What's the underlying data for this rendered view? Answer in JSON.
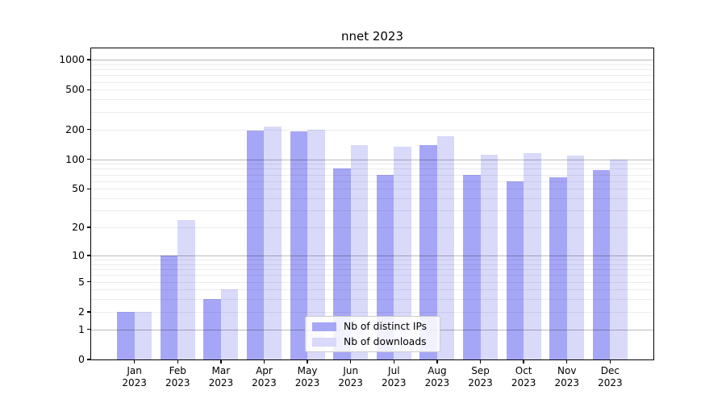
{
  "chart_data": {
    "type": "bar",
    "title": "nnet 2023",
    "categories": [
      "Jan 2023",
      "Feb 2023",
      "Mar 2023",
      "Apr 2023",
      "May 2023",
      "Jun 2023",
      "Jul 2023",
      "Aug 2023",
      "Sep 2023",
      "Oct 2023",
      "Nov 2023",
      "Dec 2023"
    ],
    "series": [
      {
        "name": "Nb of distinct IPs",
        "color": "#a6a6f6",
        "values": [
          2,
          10,
          3,
          195,
          190,
          80,
          70,
          140,
          70,
          60,
          65,
          78
        ]
      },
      {
        "name": "Nb of downloads",
        "color": "#d9d9fa",
        "values": [
          2,
          24,
          4,
          215,
          200,
          140,
          135,
          170,
          112,
          116,
          108,
          100
        ]
      }
    ],
    "yscale": "log1p",
    "yticks": [
      0,
      1,
      2,
      5,
      10,
      20,
      50,
      100,
      200,
      500,
      1000
    ],
    "ylim": [
      0,
      1300
    ],
    "xlabel": "",
    "ylabel": "",
    "grid": true,
    "legend_position": "inside-bottom-center",
    "background_color": "#ffffff",
    "text_color": "#000000"
  }
}
